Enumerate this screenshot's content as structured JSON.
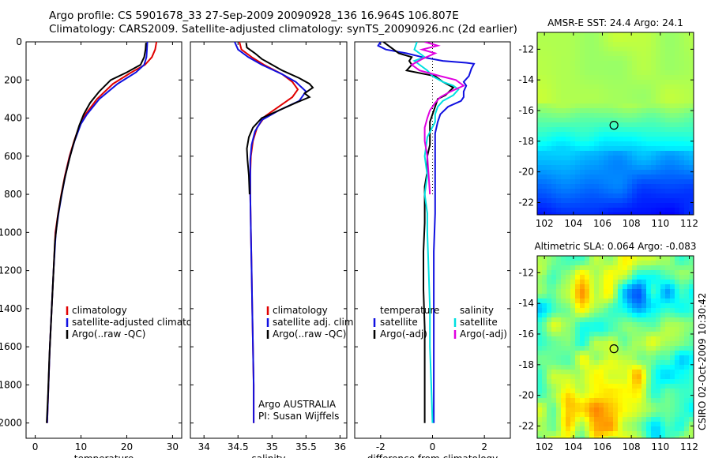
{
  "header": {
    "title_line1": "Argo profile: CS 5901678_33 27-Sep-2009 20090928_136 16.964S 106.807E",
    "title_line2": "Climatology: CARS2009. Satellite-adjusted climatology: synTS_20090926.nc (2d earlier)"
  },
  "side_stamp": "CSIRO 02-Oct-2009 10:30:42",
  "colors": {
    "climatology": "#e00000",
    "satellite": "#1010e0",
    "argo": "#000000",
    "sat_diff_salt": "#00e0e0",
    "argo_diff_salt": "#e000e0"
  },
  "chart_data": [
    {
      "id": "temperature",
      "type": "line",
      "xlabel": "temperature",
      "ylabel": "",
      "xlim": [
        -2,
        32
      ],
      "ylim": [
        2080,
        0
      ],
      "y_inverted": true,
      "xticks": [
        0,
        10,
        20,
        30
      ],
      "yticks": [
        0,
        200,
        400,
        600,
        800,
        1000,
        1200,
        1400,
        1600,
        1800,
        2000
      ],
      "legend": [
        "climatology",
        "satellite-adjusted climatology",
        "Argo(..raw -QC)"
      ],
      "series": [
        {
          "name": "climatology",
          "color": "#e00000",
          "points": [
            [
              26.5,
              0
            ],
            [
              26.2,
              40
            ],
            [
              25.5,
              80
            ],
            [
              24,
              120
            ],
            [
              21,
              160
            ],
            [
              17,
              220
            ],
            [
              13.5,
              300
            ],
            [
              11,
              380
            ],
            [
              9.8,
              430
            ],
            [
              8.5,
              520
            ],
            [
              7.5,
              600
            ],
            [
              6.5,
              700
            ],
            [
              5.7,
              800
            ],
            [
              5,
              900
            ],
            [
              4.4,
              1000
            ],
            [
              4,
              1200
            ],
            [
              3.6,
              1400
            ],
            [
              3.2,
              1600
            ],
            [
              2.9,
              1800
            ],
            [
              2.6,
              2000
            ]
          ]
        },
        {
          "name": "satellite-adjusted climatology",
          "color": "#1010e0",
          "points": [
            [
              24.5,
              0
            ],
            [
              24.4,
              40
            ],
            [
              24.3,
              80
            ],
            [
              23.8,
              120
            ],
            [
              22,
              160
            ],
            [
              18,
              220
            ],
            [
              14,
              300
            ],
            [
              11.3,
              380
            ],
            [
              10,
              430
            ],
            [
              8.6,
              520
            ],
            [
              7.6,
              600
            ],
            [
              6.6,
              700
            ],
            [
              5.8,
              800
            ],
            [
              5.1,
              900
            ],
            [
              4.5,
              1000
            ],
            [
              4,
              1200
            ],
            [
              3.6,
              1400
            ],
            [
              3.2,
              1600
            ],
            [
              2.9,
              1800
            ],
            [
              2.6,
              2000
            ]
          ]
        },
        {
          "name": "Argo(..raw -QC)",
          "color": "#000000",
          "points": [
            [
              24.2,
              5
            ],
            [
              24.1,
              40
            ],
            [
              23.8,
              80
            ],
            [
              23,
              120
            ],
            [
              20,
              160
            ],
            [
              16.5,
              200
            ],
            [
              14,
              260
            ],
            [
              12,
              320
            ],
            [
              10.6,
              380
            ],
            [
              9.6,
              440
            ],
            [
              8.3,
              540
            ],
            [
              7.4,
              620
            ],
            [
              6.4,
              720
            ],
            [
              5.6,
              820
            ],
            [
              4.9,
              920
            ],
            [
              4.3,
              1050
            ],
            [
              3.9,
              1250
            ],
            [
              3.5,
              1450
            ],
            [
              3.1,
              1650
            ],
            [
              2.8,
              1850
            ],
            [
              2.5,
              2000
            ]
          ]
        }
      ]
    },
    {
      "id": "salinity",
      "type": "line",
      "xlabel": "salinity",
      "ylabel": "",
      "xlim": [
        33.8,
        36.1
      ],
      "ylim": [
        2080,
        0
      ],
      "y_inverted": true,
      "xticks": [
        34,
        34.5,
        35,
        35.5,
        36
      ],
      "legend": [
        "climatology",
        "satellite adj. clim.",
        "Argo(..raw -QC)"
      ],
      "annotation": [
        "Argo AUSTRALIA",
        "PI: Susan Wijffels"
      ],
      "series": [
        {
          "name": "climatology",
          "color": "#e00000",
          "points": [
            [
              34.52,
              0
            ],
            [
              34.55,
              40
            ],
            [
              34.7,
              80
            ],
            [
              34.88,
              120
            ],
            [
              35.15,
              170
            ],
            [
              35.3,
              210
            ],
            [
              35.38,
              250
            ],
            [
              35.3,
              290
            ],
            [
              35.1,
              340
            ],
            [
              34.9,
              390
            ],
            [
              34.78,
              450
            ],
            [
              34.72,
              520
            ],
            [
              34.69,
              600
            ],
            [
              34.68,
              700
            ],
            [
              34.68,
              800
            ],
            [
              34.69,
              1000
            ],
            [
              34.7,
              1200
            ],
            [
              34.71,
              1400
            ],
            [
              34.72,
              1600
            ],
            [
              34.73,
              1800
            ],
            [
              34.73,
              2000
            ]
          ]
        },
        {
          "name": "satellite adj. clim.",
          "color": "#1010e0",
          "points": [
            [
              34.45,
              0
            ],
            [
              34.5,
              40
            ],
            [
              34.65,
              80
            ],
            [
              34.85,
              120
            ],
            [
              35.15,
              170
            ],
            [
              35.35,
              210
            ],
            [
              35.5,
              260
            ],
            [
              35.4,
              310
            ],
            [
              35.1,
              360
            ],
            [
              34.85,
              410
            ],
            [
              34.75,
              470
            ],
            [
              34.7,
              540
            ],
            [
              34.68,
              620
            ],
            [
              34.68,
              700
            ],
            [
              34.68,
              800
            ],
            [
              34.69,
              1000
            ],
            [
              34.7,
              1200
            ],
            [
              34.71,
              1400
            ],
            [
              34.72,
              1600
            ],
            [
              34.73,
              1800
            ],
            [
              34.73,
              2000
            ]
          ]
        },
        {
          "name": "Argo(..raw -QC)",
          "color": "#000000",
          "points": [
            [
              34.62,
              5
            ],
            [
              34.63,
              30
            ],
            [
              34.75,
              60
            ],
            [
              34.85,
              90
            ],
            [
              34.95,
              110
            ],
            [
              35.15,
              150
            ],
            [
              35.4,
              190
            ],
            [
              35.55,
              220
            ],
            [
              35.6,
              240
            ],
            [
              35.48,
              270
            ],
            [
              35.55,
              290
            ],
            [
              35.35,
              320
            ],
            [
              35.1,
              360
            ],
            [
              34.85,
              400
            ],
            [
              34.72,
              450
            ],
            [
              34.66,
              500
            ],
            [
              34.63,
              560
            ],
            [
              34.64,
              620
            ],
            [
              34.66,
              700
            ],
            [
              34.67,
              800
            ]
          ]
        }
      ]
    },
    {
      "id": "difference",
      "type": "line",
      "xlabel": "difference from climatology",
      "ylabel": "",
      "xlim": [
        -3,
        3
      ],
      "ylim": [
        2080,
        0
      ],
      "y_inverted": true,
      "xticks": [
        -2,
        0,
        2
      ],
      "legend_left": [
        "temperature",
        "satellite",
        "Argo(-adj)"
      ],
      "legend_right": [
        "salinity",
        "satellite",
        "Argo(-adj)"
      ],
      "series": [
        {
          "name": "temperature satellite",
          "color": "#1010e0",
          "points": [
            [
              -2,
              0
            ],
            [
              -2.1,
              20
            ],
            [
              -1.8,
              40
            ],
            [
              -1,
              60
            ],
            [
              -0.4,
              80
            ],
            [
              0.4,
              100
            ],
            [
              1.3,
              110
            ],
            [
              1.6,
              115
            ],
            [
              1.5,
              140
            ],
            [
              1.4,
              180
            ],
            [
              1.2,
              210
            ],
            [
              1.3,
              230
            ],
            [
              1.2,
              260
            ],
            [
              1.2,
              290
            ],
            [
              1.1,
              310
            ],
            [
              0.6,
              340
            ],
            [
              0.3,
              380
            ],
            [
              0.2,
              420
            ],
            [
              0.1,
              480
            ],
            [
              0.1,
              560
            ],
            [
              0.1,
              700
            ],
            [
              0.1,
              900
            ],
            [
              0.05,
              1100
            ],
            [
              0.05,
              1400
            ],
            [
              0.05,
              1700
            ],
            [
              0.05,
              2000
            ]
          ]
        },
        {
          "name": "temperature Argo(-adj)",
          "color": "#000000",
          "points": [
            [
              -1.9,
              0
            ],
            [
              -1.7,
              20
            ],
            [
              -1.5,
              40
            ],
            [
              -1.3,
              60
            ],
            [
              -0.8,
              80
            ],
            [
              -0.9,
              100
            ],
            [
              -0.8,
              120
            ],
            [
              -1,
              150
            ],
            [
              0.1,
              180
            ],
            [
              0.4,
              210
            ],
            [
              0.8,
              240
            ],
            [
              0.5,
              280
            ],
            [
              0.2,
              300
            ],
            [
              0.1,
              340
            ],
            [
              0,
              380
            ],
            [
              -0.1,
              420
            ],
            [
              -0.1,
              480
            ],
            [
              -0.1,
              540
            ],
            [
              -0.2,
              600
            ],
            [
              -0.2,
              680
            ],
            [
              -0.3,
              760
            ],
            [
              -0.3,
              850
            ],
            [
              -0.3,
              950
            ],
            [
              -0.35,
              1100
            ],
            [
              -0.35,
              1300
            ],
            [
              -0.3,
              1500
            ],
            [
              -0.3,
              1700
            ],
            [
              -0.3,
              1900
            ],
            [
              -0.3,
              2000
            ]
          ]
        },
        {
          "name": "salinity satellite",
          "color": "#00e0e0",
          "points": [
            [
              -0.6,
              0
            ],
            [
              -0.7,
              40
            ],
            [
              -0.5,
              60
            ],
            [
              -0.3,
              80
            ],
            [
              -0.7,
              100
            ],
            [
              -0.5,
              120
            ],
            [
              -0.2,
              150
            ],
            [
              0,
              180
            ],
            [
              0.4,
              210
            ],
            [
              0.8,
              230
            ],
            [
              1,
              250
            ],
            [
              0.8,
              280
            ],
            [
              0.4,
              310
            ],
            [
              0.2,
              340
            ],
            [
              0.1,
              380
            ],
            [
              0.1,
              420
            ],
            [
              -0.2,
              500
            ],
            [
              -0.3,
              600
            ],
            [
              -0.2,
              700
            ],
            [
              -0.3,
              800
            ],
            [
              -0.2,
              900
            ],
            [
              -0.2,
              1000
            ],
            [
              -0.15,
              1200
            ],
            [
              -0.1,
              1400
            ],
            [
              -0.1,
              1600
            ],
            [
              -0.05,
              1800
            ],
            [
              0,
              2000
            ]
          ]
        },
        {
          "name": "salinity Argo(-adj)",
          "color": "#e000e0",
          "points": [
            [
              -0.3,
              0
            ],
            [
              0.2,
              20
            ],
            [
              -0.4,
              40
            ],
            [
              0.1,
              60
            ],
            [
              -0.4,
              90
            ],
            [
              -0.8,
              120
            ],
            [
              -0.5,
              150
            ],
            [
              0.3,
              180
            ],
            [
              0.9,
              200
            ],
            [
              1.2,
              230
            ],
            [
              0.7,
              260
            ],
            [
              0.3,
              290
            ],
            [
              0.1,
              320
            ],
            [
              -0.1,
              360
            ],
            [
              -0.2,
              400
            ],
            [
              -0.3,
              450
            ],
            [
              -0.3,
              520
            ],
            [
              -0.2,
              600
            ],
            [
              -0.15,
              700
            ],
            [
              -0.1,
              800
            ]
          ]
        }
      ]
    },
    {
      "id": "amsre_sst",
      "type": "heatmap",
      "title": "AMSR-E SST: 24.4  Argo: 24.1",
      "xticks": [
        102,
        104,
        106,
        108,
        110,
        112
      ],
      "yticks": [
        -12,
        -14,
        -16,
        -18,
        -20,
        -22
      ],
      "xlim": [
        101.5,
        112.3
      ],
      "ylim": [
        -22.8,
        -10.9
      ],
      "marker": {
        "lon": 106.8,
        "lat": -16.96
      }
    },
    {
      "id": "altimetric_sla",
      "type": "heatmap",
      "title": "Altimetric SLA: 0.064  Argo: -0.083",
      "xticks": [
        102,
        104,
        106,
        108,
        110,
        112
      ],
      "yticks": [
        -12,
        -14,
        -16,
        -18,
        -20,
        -22
      ],
      "xlim": [
        101.5,
        112.3
      ],
      "ylim": [
        -22.8,
        -10.9
      ],
      "marker": {
        "lon": 106.8,
        "lat": -16.96
      }
    }
  ]
}
